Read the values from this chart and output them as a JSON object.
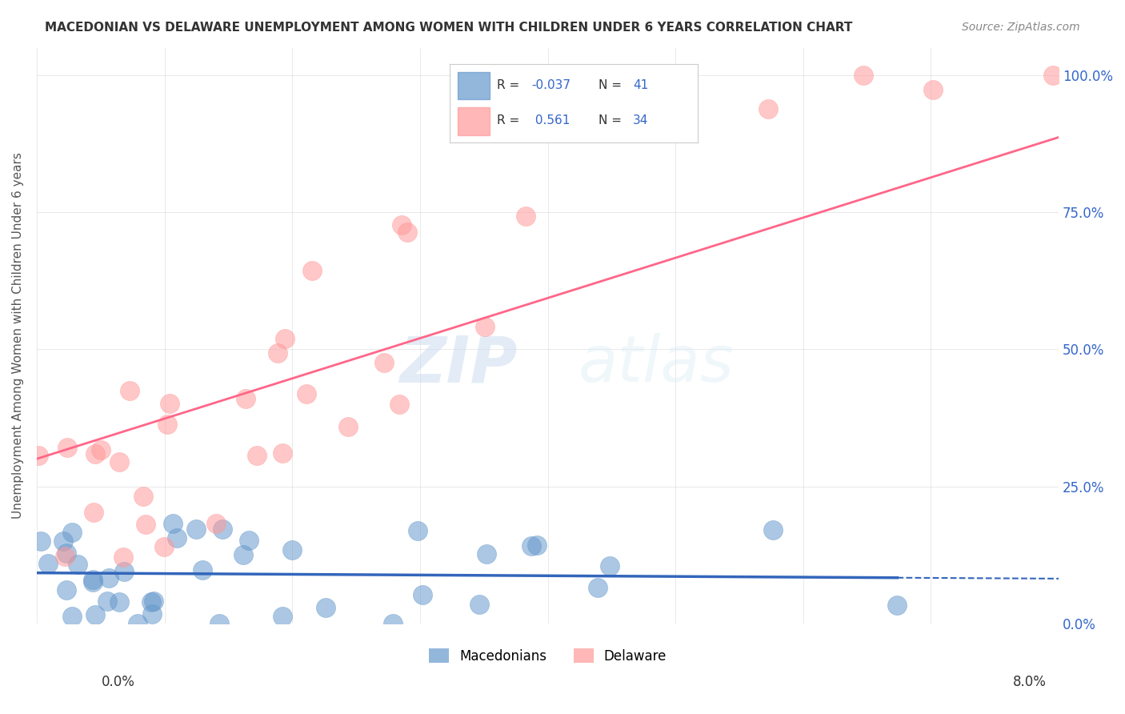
{
  "title": "MACEDONIAN VS DELAWARE UNEMPLOYMENT AMONG WOMEN WITH CHILDREN UNDER 6 YEARS CORRELATION CHART",
  "source": "Source: ZipAtlas.com",
  "ylabel": "Unemployment Among Women with Children Under 6 years",
  "legend_blue_label": "Macedonians",
  "legend_pink_label": "Delaware",
  "blue_color": "#6699CC",
  "pink_color": "#FF9999",
  "trend_blue_color": "#3366BB",
  "trend_pink_color": "#FF6688",
  "watermark_zip": "ZIP",
  "watermark_atlas": "atlas",
  "background_color": "#ffffff",
  "xlim": [
    0.0,
    0.08
  ],
  "ylim": [
    0.0,
    1.05
  ],
  "right_ytick_vals": [
    0.0,
    0.25,
    0.5,
    0.75,
    1.0
  ],
  "right_ytick_labels": [
    "0.0%",
    "25.0%",
    "50.0%",
    "75.0%",
    "100.0%"
  ]
}
